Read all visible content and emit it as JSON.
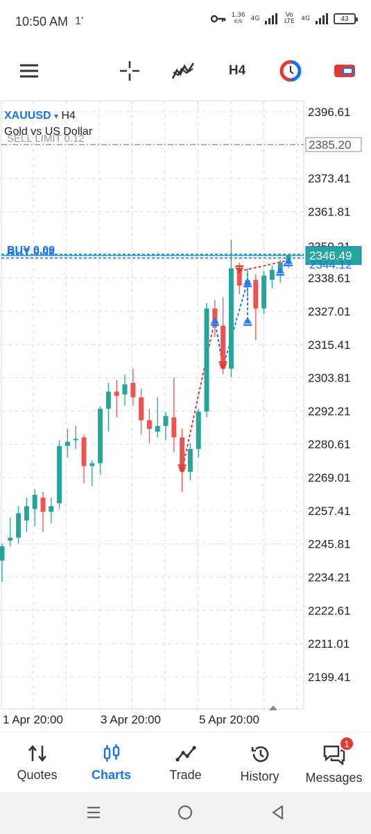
{
  "status": {
    "time": "10:50 AM",
    "extra": "1'",
    "speed_value": "1.36",
    "speed_unit": "K/S",
    "net1": "4G",
    "volte": "Vo LTE",
    "net2": "4G",
    "battery": "43"
  },
  "toolbar": {
    "timeframe": "H4",
    "icons": [
      "menu-icon",
      "crosshair-icon",
      "indicators-icon",
      "timeframe",
      "one-click-trading-icon",
      "trade-toggle-icon"
    ]
  },
  "chart_header": {
    "symbol": "XAUUSD",
    "symbol_arrow": "▾",
    "timeframe": "H4",
    "description": "Gold vs US Dollar"
  },
  "chart_data": {
    "type": "candlestick",
    "ylim": [
      2190.0,
      2403.0
    ],
    "y_ticks": [
      "2396.61",
      "2373.41",
      "2361.81",
      "2338.61",
      "2327.01",
      "2315.41",
      "2303.81",
      "2292.21",
      "2280.61",
      "2269.01",
      "2257.41",
      "2245.81",
      "2234.21",
      "2222.61",
      "2211.01",
      "2199.41"
    ],
    "x_labels": [
      "1 Apr 20:00",
      "3 Apr 20:00",
      "5 Apr 20:00"
    ],
    "orders": [
      {
        "label": "SELL LIMIT 0.12",
        "price": 2385.2,
        "price_label": "2385.20"
      },
      {
        "label": "BUY 0.09",
        "price": 2346.9
      },
      {
        "label": "BUY 0.08",
        "price": 2345.6
      }
    ],
    "overlapping_label_partial": "2350.21",
    "bid": {
      "price": 2346.49,
      "label": "2346.49"
    },
    "ask_partial": {
      "price": 2344.12,
      "label": "2344.12"
    },
    "candles": [
      {
        "o": 2240.0,
        "h": 2246.0,
        "l": 2232.5,
        "c": 2245.0
      },
      {
        "o": 2247.0,
        "h": 2255.0,
        "l": 2245.0,
        "c": 2248.0
      },
      {
        "o": 2248.0,
        "h": 2259.0,
        "l": 2246.0,
        "c": 2256.5
      },
      {
        "o": 2254.0,
        "h": 2262.0,
        "l": 2250.0,
        "c": 2259.0
      },
      {
        "o": 2258.0,
        "h": 2265.0,
        "l": 2252.0,
        "c": 2263.0
      },
      {
        "o": 2262.0,
        "h": 2264.0,
        "l": 2250.0,
        "c": 2257.0
      },
      {
        "o": 2257.0,
        "h": 2262.0,
        "l": 2253.0,
        "c": 2259.0
      },
      {
        "o": 2260.0,
        "h": 2282.0,
        "l": 2258.0,
        "c": 2280.0
      },
      {
        "o": 2280.0,
        "h": 2286.0,
        "l": 2276.0,
        "c": 2281.5
      },
      {
        "o": 2282.0,
        "h": 2287.0,
        "l": 2279.0,
        "c": 2282.5
      },
      {
        "o": 2283.0,
        "h": 2284.0,
        "l": 2267.0,
        "c": 2273.0
      },
      {
        "o": 2273.0,
        "h": 2275.0,
        "l": 2266.0,
        "c": 2274.0
      },
      {
        "o": 2274.0,
        "h": 2294.0,
        "l": 2270.0,
        "c": 2293.0
      },
      {
        "o": 2293.0,
        "h": 2302.0,
        "l": 2285.0,
        "c": 2299.0
      },
      {
        "o": 2299.0,
        "h": 2303.0,
        "l": 2290.0,
        "c": 2297.5
      },
      {
        "o": 2298.0,
        "h": 2305.0,
        "l": 2294.0,
        "c": 2301.5
      },
      {
        "o": 2302.0,
        "h": 2307.0,
        "l": 2294.0,
        "c": 2297.0
      },
      {
        "o": 2297.0,
        "h": 2300.0,
        "l": 2284.0,
        "c": 2289.0
      },
      {
        "o": 2289.0,
        "h": 2293.0,
        "l": 2281.0,
        "c": 2286.0
      },
      {
        "o": 2285.0,
        "h": 2297.0,
        "l": 2283.0,
        "c": 2287.0
      },
      {
        "o": 2287.0,
        "h": 2292.0,
        "l": 2282.0,
        "c": 2290.5
      },
      {
        "o": 2290.0,
        "h": 2304.0,
        "l": 2278.0,
        "c": 2283.0
      },
      {
        "o": 2283.0,
        "h": 2286.0,
        "l": 2264.0,
        "c": 2271.0
      },
      {
        "o": 2271.0,
        "h": 2281.0,
        "l": 2268.0,
        "c": 2279.0
      },
      {
        "o": 2279.0,
        "h": 2293.0,
        "l": 2276.0,
        "c": 2292.0
      },
      {
        "o": 2292.0,
        "h": 2330.0,
        "l": 2290.0,
        "c": 2328.0
      },
      {
        "o": 2328.0,
        "h": 2331.0,
        "l": 2318.0,
        "c": 2322.0
      },
      {
        "o": 2322.0,
        "h": 2332.0,
        "l": 2305.0,
        "c": 2307.0
      },
      {
        "o": 2307.0,
        "h": 2352.0,
        "l": 2304.0,
        "c": 2342.0
      },
      {
        "o": 2342.0,
        "h": 2344.0,
        "l": 2333.0,
        "c": 2336.0
      },
      {
        "o": 2336.0,
        "h": 2342.0,
        "l": 2332.0,
        "c": 2338.0
      },
      {
        "o": 2338.0,
        "h": 2340.0,
        "l": 2317.0,
        "c": 2328.0
      },
      {
        "o": 2328.0,
        "h": 2341.0,
        "l": 2326.0,
        "c": 2339.5
      },
      {
        "o": 2338.0,
        "h": 2343.0,
        "l": 2335.0,
        "c": 2341.5
      },
      {
        "o": 2341.0,
        "h": 2345.0,
        "l": 2337.0,
        "c": 2344.0
      },
      {
        "o": 2344.0,
        "h": 2347.0,
        "l": 2342.0,
        "c": 2346.49
      }
    ],
    "trade_markers": [
      {
        "type": "sell",
        "index": 22,
        "price": 2271.5
      },
      {
        "type": "buy",
        "index": 26,
        "price": 2324.0
      },
      {
        "type": "sell",
        "index": 27,
        "price": 2307.5
      },
      {
        "type": "sell",
        "index": 29,
        "price": 2341.0
      },
      {
        "type": "buy",
        "index": 30,
        "price": 2337.5
      },
      {
        "type": "buy",
        "index": 30,
        "price": 2324.0
      },
      {
        "type": "buy",
        "index": 34,
        "price": 2341.5
      },
      {
        "type": "buy",
        "index": 35,
        "price": 2344.8
      }
    ],
    "trade_lines": [
      {
        "color": "red",
        "from": [
          22,
          2271.5
        ],
        "to": [
          26,
          2324.0
        ]
      },
      {
        "color": "red",
        "from": [
          26,
          2324.0
        ],
        "to": [
          27,
          2307.5
        ]
      },
      {
        "color": "red",
        "from": [
          29,
          2341.0
        ],
        "to": [
          35,
          2344.8
        ]
      },
      {
        "color": "blue",
        "from": [
          26,
          2324.0
        ],
        "to": [
          27,
          2307.5
        ]
      },
      {
        "color": "blue",
        "from": [
          27,
          2307.5
        ],
        "to": [
          30,
          2337.5
        ]
      },
      {
        "color": "blue",
        "from": [
          30,
          2324.0
        ],
        "to": [
          30,
          2341.0
        ]
      },
      {
        "color": "blue",
        "from": [
          34,
          2341.5
        ],
        "to": [
          35,
          2344.8
        ]
      }
    ],
    "grid": true,
    "colors": {
      "bull": "#26a69a",
      "bear": "#ef5350",
      "buy_marker": "#2979ff",
      "sell_marker": "#e53935",
      "order_line": "#1a73e8",
      "bid": "#26a69a"
    }
  },
  "bottom_nav": [
    {
      "label": "Quotes",
      "icon": "quotes-icon",
      "active": false
    },
    {
      "label": "Charts",
      "icon": "charts-icon",
      "active": true
    },
    {
      "label": "Trade",
      "icon": "trade-icon",
      "active": false
    },
    {
      "label": "History",
      "icon": "history-icon",
      "active": false
    },
    {
      "label": "Messages",
      "icon": "messages-icon",
      "active": false,
      "badge": "1"
    }
  ]
}
